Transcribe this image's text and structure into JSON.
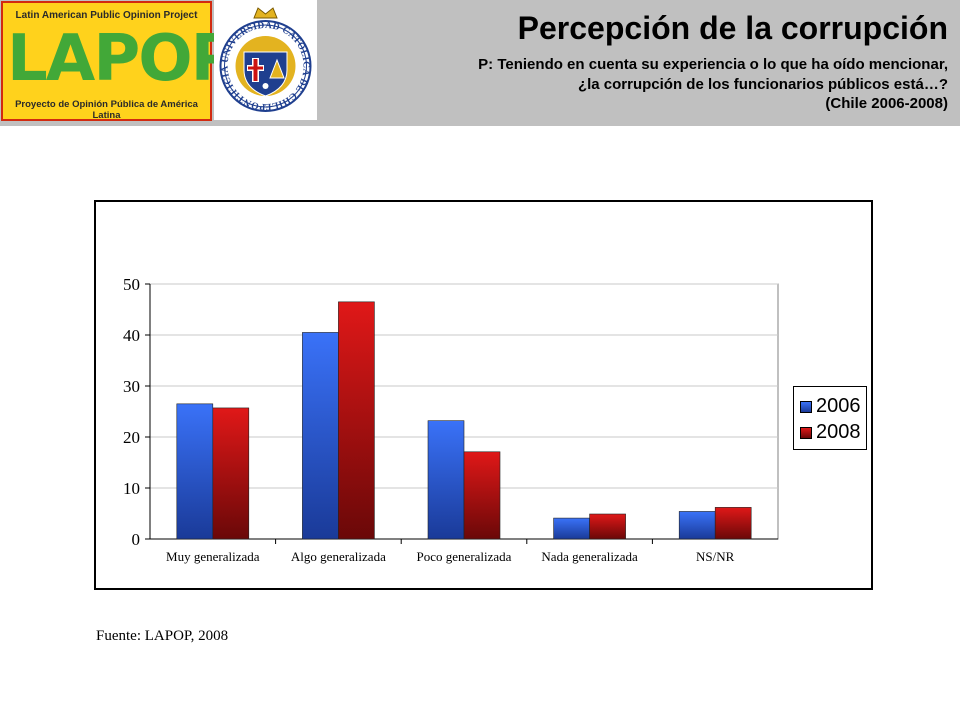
{
  "header": {
    "title": "Percepción de la corrupción",
    "question_lines": [
      "P: Teniendo en cuenta su experiencia o lo que ha oído mencionar,",
      "¿la corrupción de los funcionarios públicos está…?",
      "(Chile 2006-2008)"
    ],
    "lapop_logo": {
      "top_text": "Latin American Public Opinion Project",
      "wordmark": "LAPOP",
      "bottom_text": "Proyecto de Opinión Pública de América Latina"
    },
    "seal": {
      "ring_text": "PONTIFICIA UNIVERSIDAD CATOLICA DE CHILE"
    }
  },
  "chart_data": {
    "type": "bar",
    "categories": [
      "Muy generalizada",
      "Algo generalizada",
      "Poco generalizada",
      "Nada generalizada",
      "NS/NR"
    ],
    "series": [
      {
        "name": "2006",
        "values": [
          26.5,
          40.5,
          23.2,
          4.1,
          5.4
        ],
        "color": "#2a62e8"
      },
      {
        "name": "2008",
        "values": [
          25.7,
          46.5,
          17.1,
          4.9,
          6.2
        ],
        "color": "#cc1111"
      }
    ],
    "ylim": [
      0,
      50
    ],
    "yticks": [
      0,
      10,
      20,
      30,
      40,
      50
    ],
    "grid": true,
    "legend": "right"
  },
  "source": "Fuente: LAPOP, 2008",
  "colors": {
    "header_bg": "#c0c0c0",
    "grid": "#c8c8c8",
    "series_2006": "#2a62e8",
    "series_2008": "#cc1111"
  }
}
